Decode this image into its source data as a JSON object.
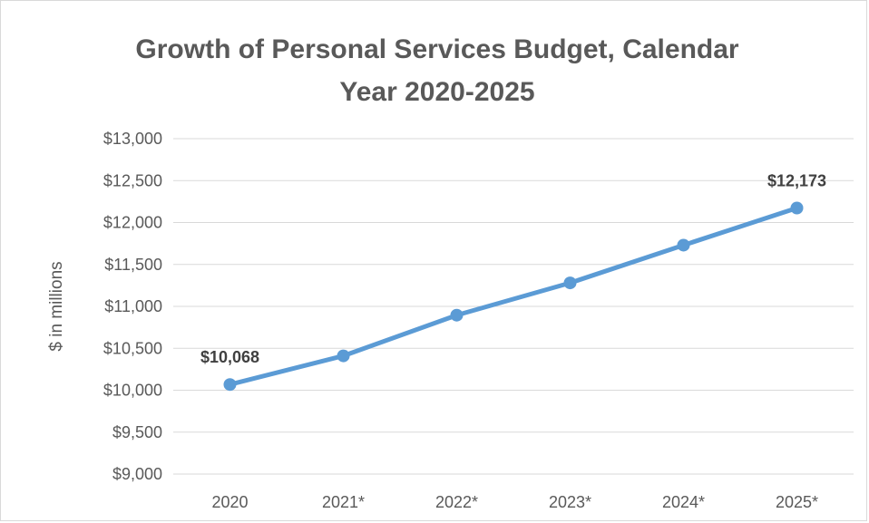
{
  "chart_data": {
    "type": "line",
    "title": "Growth of Personal Services Budget, Calendar Year 2020-2025",
    "title_lines": [
      "Growth of Personal Services Budget, Calendar",
      "Year 2020-2025"
    ],
    "xlabel": "",
    "ylabel": "$ in millions",
    "categories": [
      "2020",
      "2021*",
      "2022*",
      "2023*",
      "2024*",
      "2025*"
    ],
    "series": [
      {
        "values": [
          10068,
          10410,
          10895,
          11280,
          11730,
          12173
        ],
        "color": "#5b9bd5"
      }
    ],
    "ylim": [
      9000,
      13000
    ],
    "ytick_step": 500,
    "ytick_labels": [
      "$9,000",
      "$9,500",
      "$10,000",
      "$10,500",
      "$11,000",
      "$11,500",
      "$12,000",
      "$12,500",
      "$13,000"
    ],
    "data_labels": [
      {
        "index": 0,
        "text": "$10,068"
      },
      {
        "index": 5,
        "text": "$12,173"
      }
    ],
    "grid": true,
    "legend": "none"
  }
}
